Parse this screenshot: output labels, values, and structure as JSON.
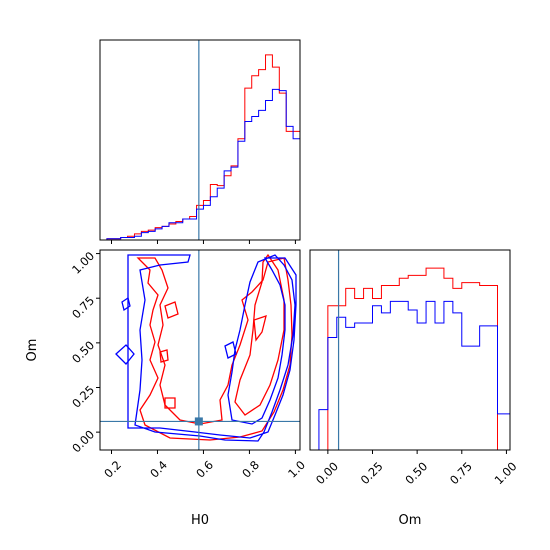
{
  "chart_data": {
    "type": "corner",
    "parameters": [
      "H0",
      "Om"
    ],
    "truth": {
      "H0": 0.58,
      "Om": 0.06
    },
    "colors": {
      "series_a": "#ff0000",
      "series_b": "#0000ff",
      "truth": "#3a78a8"
    },
    "panels": [
      {
        "id": "hist-h0",
        "type": "step-histogram",
        "xlim": [
          0.15,
          1.02
        ],
        "bins": [
          0.15,
          0.18,
          0.21,
          0.24,
          0.27,
          0.3,
          0.33,
          0.36,
          0.39,
          0.42,
          0.45,
          0.48,
          0.51,
          0.54,
          0.57,
          0.6,
          0.63,
          0.66,
          0.69,
          0.72,
          0.75,
          0.78,
          0.81,
          0.84,
          0.87,
          0.9,
          0.93,
          0.96,
          0.99,
          1.02
        ],
        "series": [
          {
            "color_key": "series_a",
            "values": [
              0,
              1,
              1,
              2,
              3,
              5,
              7,
              8,
              10,
              11,
              13,
              15,
              17,
              19,
              28,
              32,
              45,
              44,
              52,
              60,
              82,
              123,
              133,
              138,
              150,
              140,
              119,
              88,
              88,
              18
            ]
          },
          {
            "color_key": "series_b",
            "values": [
              0,
              1,
              1,
              2,
              2,
              3,
              6,
              7,
              9,
              11,
              14,
              14,
              17,
              17,
              25,
              28,
              35,
              42,
              56,
              59,
              80,
              96,
              100,
              105,
              113,
              122,
              121,
              92,
              82,
              46
            ]
          }
        ]
      },
      {
        "id": "contour-h0-om",
        "type": "contour",
        "xlim": [
          0.15,
          1.02
        ],
        "ylim": [
          -0.1,
          1.02
        ],
        "xticks": [
          "0.2",
          "0.4",
          "0.6",
          "0.8",
          "1.0"
        ],
        "yticks": [
          "0.00",
          "0.25",
          "0.50",
          "0.75",
          "1.00"
        ],
        "xlabel": "H0",
        "ylabel": "Om"
      },
      {
        "id": "hist-om",
        "type": "step-histogram",
        "xlim": [
          -0.1,
          1.02
        ],
        "xticks": [
          "0.00",
          "0.25",
          "0.50",
          "0.75",
          "1.00"
        ],
        "xlabel": "Om",
        "bins": [
          -0.1,
          -0.05,
          0.0,
          0.05,
          0.1,
          0.15,
          0.2,
          0.25,
          0.3,
          0.35,
          0.4,
          0.45,
          0.5,
          0.55,
          0.6,
          0.65,
          0.7,
          0.75,
          0.8,
          0.85,
          0.9,
          0.95,
          1.0,
          1.02
        ],
        "series": [
          {
            "color_key": "series_a",
            "values": [
              0,
              0,
              1.0,
              1.0,
              1.12,
              1.05,
              1.12,
              1.05,
              1.14,
              1.14,
              1.19,
              1.21,
              1.21,
              1.26,
              1.26,
              1.19,
              1.12,
              1.16,
              1.16,
              1.14,
              1.14,
              0.0,
              0.0
            ]
          },
          {
            "color_key": "series_b",
            "values": [
              0,
              0.28,
              0.78,
              0.92,
              0.85,
              0.88,
              0.88,
              1.0,
              0.95,
              1.03,
              1.03,
              0.97,
              0.88,
              1.03,
              0.88,
              1.03,
              0.95,
              0.72,
              0.72,
              0.86,
              0.86,
              0.25,
              0.25
            ]
          }
        ]
      }
    ]
  }
}
